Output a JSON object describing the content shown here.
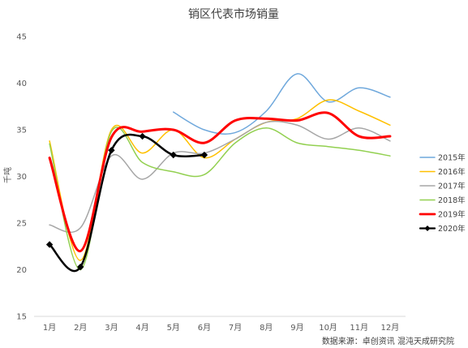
{
  "chart_data": {
    "type": "line",
    "title": "销区代表市场销量",
    "ylabel": "千吨",
    "xlabel": "",
    "categories": [
      "1月",
      "2月",
      "3月",
      "4月",
      "5月",
      "6月",
      "7月",
      "8月",
      "9月",
      "10月",
      "11月",
      "12月"
    ],
    "ylim": [
      15,
      45
    ],
    "yticks": [
      15,
      20,
      25,
      30,
      35,
      40,
      45
    ],
    "grid": false,
    "legend_position": "right",
    "series": [
      {
        "name": "2015年",
        "color": "#6fa8dc",
        "width": 1.5,
        "markers": false,
        "values": [
          null,
          null,
          null,
          null,
          36.9,
          35.0,
          34.7,
          37.0,
          41.0,
          38.0,
          39.5,
          38.5
        ]
      },
      {
        "name": "2016年",
        "color": "#ffc000",
        "width": 1.5,
        "markers": false,
        "values": [
          33.8,
          21.0,
          35.0,
          32.5,
          35.0,
          32.0,
          34.0,
          35.8,
          36.2,
          38.2,
          37.0,
          35.5
        ]
      },
      {
        "name": "2017年",
        "color": "#a6a6a6",
        "width": 1.5,
        "markers": false,
        "values": [
          24.8,
          24.5,
          32.2,
          29.7,
          32.5,
          32.5,
          34.0,
          35.8,
          35.5,
          34.0,
          35.2,
          33.8
        ]
      },
      {
        "name": "2018年",
        "color": "#92d050",
        "width": 1.5,
        "markers": false,
        "values": [
          33.5,
          20.0,
          34.8,
          31.5,
          30.5,
          30.2,
          33.6,
          35.2,
          33.6,
          33.2,
          32.8,
          32.2
        ]
      },
      {
        "name": "2019年",
        "color": "#ff0000",
        "width": 3,
        "markers": false,
        "values": [
          32.0,
          22.0,
          34.2,
          34.8,
          35.0,
          33.6,
          36.0,
          36.2,
          36.0,
          36.8,
          34.3,
          34.3
        ]
      },
      {
        "name": "2020年",
        "color": "#000000",
        "width": 2.5,
        "markers": true,
        "values": [
          22.7,
          20.3,
          32.8,
          34.3,
          32.3,
          32.3,
          null,
          null,
          null,
          null,
          null,
          null
        ]
      }
    ]
  },
  "source": "数据来源：卓创资讯 混沌天成研究院"
}
